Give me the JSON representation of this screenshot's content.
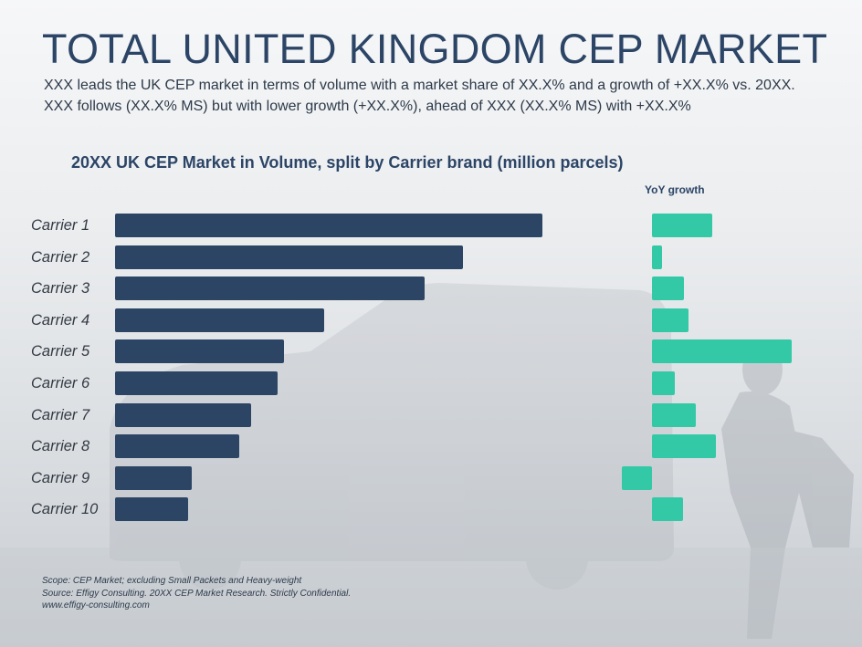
{
  "header": {
    "title": "TOTAL UNITED KINGDOM CEP MARKET",
    "subtitle_line1": "XXX leads the UK CEP market in terms of volume with a market share of XX.X% and a growth of +XX.X% vs. 20XX.",
    "subtitle_line2": "XXX follows (XX.X% MS) but with lower growth (+XX.X%), ahead of XXX (XX.X% MS) with +XX.X%"
  },
  "chart_data": {
    "type": "bar",
    "orientation": "horizontal",
    "title": "20XX UK CEP Market in Volume, split by Carrier brand (million parcels)",
    "categories": [
      "Carrier 1",
      "Carrier 2",
      "Carrier 3",
      "Carrier 4",
      "Carrier 5",
      "Carrier 6",
      "Carrier 7",
      "Carrier 8",
      "Carrier 9",
      "Carrier 10"
    ],
    "series": [
      {
        "values": [
          100,
          81.5,
          72.4,
          48.9,
          39.6,
          38.1,
          31.9,
          29.0,
          17.9,
          17.2
        ]
      },
      {
        "name": "YoY growth",
        "values": [
          12.1,
          2.1,
          6.4,
          7.3,
          28.2,
          4.6,
          8.9,
          12.9,
          -6.0,
          6.2
        ]
      }
    ],
    "colors": {
      "volume": "#2d4565",
      "growth": "#33c9a6"
    },
    "grid": false,
    "legend": "none"
  },
  "footer": {
    "scope": "Scope: CEP Market; excluding Small Packets and Heavy-weight",
    "source": "Source: Effigy Consulting. 20XX CEP Market Research. Strictly Confidential.",
    "website": "www.effigy-consulting.com"
  }
}
